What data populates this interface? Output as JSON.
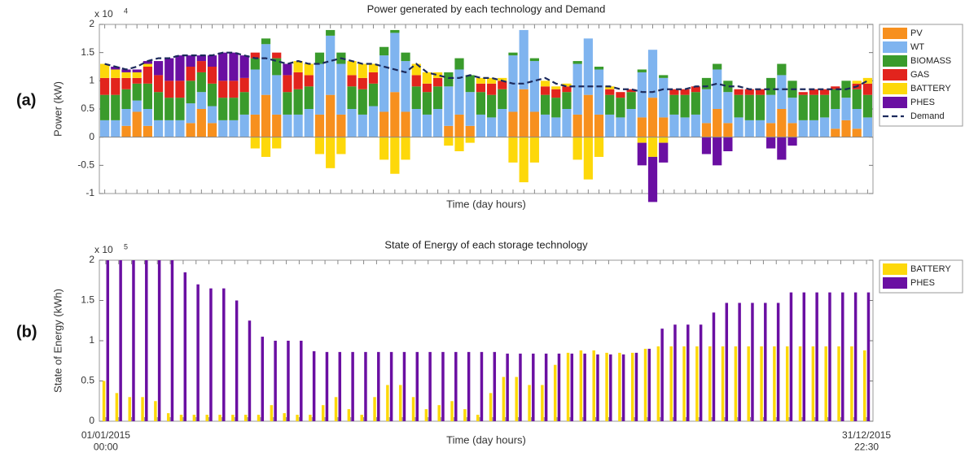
{
  "chart_data": [
    {
      "type": "stacked_bar",
      "panel_label": "(a)",
      "title": "Power generated by each technology and Demand",
      "x_label": "Time (day hours)",
      "y_label": "Power (kW)",
      "y_multiplier": {
        "base": "x 10",
        "exponent": "4"
      },
      "ylim": [
        -1,
        2
      ],
      "yticks": [
        -1,
        -0.5,
        0,
        0.5,
        1,
        1.5,
        2
      ],
      "grid": false,
      "legend": "right",
      "categories": [
        null,
        null,
        null,
        null,
        null,
        null,
        null,
        null,
        null,
        null,
        null,
        null,
        null,
        null,
        null,
        null,
        null,
        null,
        null,
        null,
        null,
        null,
        null,
        null,
        null,
        null,
        null,
        null,
        null,
        null,
        null,
        null,
        null,
        null,
        null,
        null,
        null,
        null,
        null,
        null,
        null,
        null,
        null,
        null,
        null,
        null,
        null,
        null,
        null,
        null,
        null,
        null,
        null,
        null,
        null,
        null,
        null,
        null,
        null,
        null,
        null,
        null,
        null,
        null,
        null,
        null,
        null,
        null,
        null,
        null,
        null,
        null
      ],
      "series": [
        {
          "name": "PV",
          "color": "#f7901e",
          "values": [
            0,
            0,
            0.2,
            0.45,
            0.2,
            0,
            0,
            0,
            0.25,
            0.5,
            0.25,
            0,
            0,
            0,
            0.4,
            0.75,
            0.4,
            0,
            0,
            0,
            0.4,
            0.75,
            0.4,
            0,
            0,
            0,
            0.45,
            0.8,
            0.45,
            0,
            0,
            0,
            0.2,
            0.4,
            0.2,
            0,
            0,
            0,
            0.45,
            0.85,
            0.45,
            0,
            0,
            0,
            0.4,
            0.75,
            0.4,
            0,
            0,
            0,
            0.35,
            0.7,
            0.35,
            0,
            0,
            0,
            0.25,
            0.5,
            0.25,
            0,
            0,
            0,
            0.25,
            0.5,
            0.25,
            0,
            0,
            0,
            0.15,
            0.3,
            0.15,
            0
          ]
        },
        {
          "name": "WT",
          "color": "#7fb4ef",
          "values": [
            0.3,
            0.3,
            0.3,
            0.2,
            0.3,
            0.3,
            0.3,
            0.3,
            0.35,
            0.3,
            0.3,
            0.3,
            0.3,
            0.4,
            0.8,
            0.9,
            0.7,
            0.4,
            0.4,
            0.5,
            0.9,
            1.05,
            0.9,
            0.5,
            0.4,
            0.55,
            1.0,
            1.05,
            0.9,
            0.5,
            0.4,
            0.5,
            0.7,
            0.8,
            0.6,
            0.4,
            0.35,
            0.5,
            1.0,
            1.05,
            0.9,
            0.4,
            0.35,
            0.5,
            0.9,
            1.0,
            0.8,
            0.4,
            0.35,
            0.5,
            0.8,
            0.85,
            0.7,
            0.4,
            0.35,
            0.4,
            0.6,
            0.7,
            0.55,
            0.35,
            0.3,
            0.3,
            0.5,
            0.6,
            0.45,
            0.3,
            0.3,
            0.35,
            0.35,
            0.4,
            0.35,
            0.35
          ]
        },
        {
          "name": "BIOMASS",
          "color": "#3a9b2c",
          "values": [
            0.45,
            0.45,
            0.35,
            0.3,
            0.45,
            0.5,
            0.4,
            0.4,
            0.4,
            0.35,
            0.4,
            0.4,
            0.4,
            0.4,
            0.2,
            0.1,
            0.3,
            0.4,
            0.45,
            0.4,
            0.2,
            0.1,
            0.2,
            0.4,
            0.45,
            0.4,
            0.15,
            0.05,
            0.15,
            0.4,
            0.4,
            0.4,
            0.25,
            0.2,
            0.3,
            0.4,
            0.4,
            0.35,
            0.05,
            0,
            0.05,
            0.35,
            0.35,
            0.3,
            0.05,
            0,
            0.05,
            0.35,
            0.35,
            0.3,
            0.05,
            0,
            0.05,
            0.35,
            0.4,
            0.4,
            0.2,
            0.1,
            0.2,
            0.4,
            0.45,
            0.45,
            0.3,
            0.2,
            0.3,
            0.45,
            0.45,
            0.4,
            0.35,
            0.3,
            0.35,
            0.4
          ]
        },
        {
          "name": "GAS",
          "color": "#e2241d",
          "values": [
            0.3,
            0.3,
            0.2,
            0.1,
            0.3,
            0.3,
            0.3,
            0.3,
            0.25,
            0.2,
            0.3,
            0.3,
            0.3,
            0.25,
            0.1,
            0,
            0.1,
            0.3,
            0.3,
            0.2,
            0,
            0,
            0,
            0.2,
            0.2,
            0.2,
            0,
            0,
            0,
            0.2,
            0.15,
            0.15,
            0,
            0,
            0,
            0.15,
            0.2,
            0.15,
            0,
            0,
            0,
            0.15,
            0.15,
            0.1,
            0,
            0,
            0,
            0.1,
            0.1,
            0.05,
            0,
            0,
            0,
            0.1,
            0.1,
            0.1,
            0,
            0,
            0,
            0.1,
            0.1,
            0.1,
            0,
            0,
            0,
            0.05,
            0.1,
            0.1,
            0.05,
            0,
            0.1,
            0.2
          ]
        },
        {
          "name": "BATTERY",
          "color": "#fdd80a",
          "values": [
            0.25,
            0.15,
            0.1,
            0.1,
            0.05,
            0,
            0,
            0,
            0,
            0,
            0,
            0,
            0,
            0,
            -0.2,
            -0.35,
            -0.2,
            0,
            0.2,
            0.2,
            -0.3,
            -0.55,
            -0.3,
            0.25,
            0.25,
            0.15,
            -0.4,
            -0.65,
            -0.4,
            0.2,
            0.2,
            0.1,
            -0.15,
            -0.25,
            -0.1,
            0.1,
            0.1,
            0.05,
            -0.45,
            -0.8,
            -0.45,
            0.1,
            0.05,
            0.05,
            -0.4,
            -0.75,
            -0.35,
            0.05,
            0,
            0,
            -0.1,
            -0.35,
            -0.1,
            0,
            0,
            0,
            0,
            0,
            0,
            0,
            0,
            0,
            0,
            0,
            0,
            0,
            0,
            0,
            0,
            0,
            0.05,
            0.1
          ]
        },
        {
          "name": "PHES",
          "color": "#6a0fa2",
          "values": [
            0,
            0.05,
            0.05,
            0.05,
            0.05,
            0.25,
            0.4,
            0.45,
            0.2,
            0.1,
            0.2,
            0.5,
            0.5,
            0.4,
            0,
            0,
            0,
            0.2,
            0,
            0,
            0,
            0,
            0,
            0,
            0,
            0,
            0,
            0,
            0,
            0,
            0,
            0,
            0,
            0,
            0,
            0,
            0,
            0,
            0,
            0,
            0,
            0,
            0,
            0,
            0,
            0,
            0,
            0,
            0,
            0,
            -0.4,
            -0.8,
            -0.35,
            0,
            0,
            0,
            -0.3,
            -0.5,
            -0.25,
            0,
            0,
            0,
            -0.2,
            -0.4,
            -0.15,
            0,
            0,
            0,
            0,
            0,
            0,
            0
          ]
        },
        {
          "name": "Demand",
          "color": "#1c2a5c",
          "kind": "line",
          "dashed": true,
          "values": [
            1.3,
            1.25,
            1.2,
            1.25,
            1.35,
            1.4,
            1.4,
            1.45,
            1.45,
            1.45,
            1.45,
            1.5,
            1.5,
            1.45,
            1.4,
            1.4,
            1.35,
            1.3,
            1.35,
            1.3,
            1.3,
            1.35,
            1.4,
            1.35,
            1.3,
            1.3,
            1.25,
            1.2,
            1.15,
            1.3,
            1.15,
            1.1,
            1.05,
            1.05,
            1.1,
            1.05,
            1.05,
            1.0,
            0.95,
            0.95,
            1.0,
            1.05,
            0.95,
            0.9,
            0.9,
            0.9,
            0.9,
            0.9,
            0.85,
            0.85,
            0.8,
            0.8,
            0.85,
            0.85,
            0.85,
            0.9,
            0.9,
            0.95,
            0.9,
            0.9,
            0.85,
            0.85,
            0.85,
            0.85,
            0.85,
            0.85,
            0.85,
            0.85,
            0.85,
            0.85,
            0.9,
            1.0
          ]
        }
      ]
    },
    {
      "type": "paired_bar",
      "panel_label": "(b)",
      "title": "State of Energy of each storage technology",
      "x_label": "Time (day hours)",
      "y_label": "State of Energy (kWh)",
      "y_multiplier": {
        "base": "x 10",
        "exponent": "5"
      },
      "ylim": [
        0,
        2
      ],
      "yticks": [
        0,
        0.5,
        1,
        1.5,
        2
      ],
      "grid": false,
      "legend": "right",
      "categories": [
        "01/01/2015\n00:00",
        null,
        null,
        null,
        null,
        null,
        null,
        null,
        null,
        null,
        null,
        null,
        null,
        null,
        null,
        null,
        null,
        null,
        null,
        null,
        null,
        null,
        null,
        null,
        null,
        null,
        null,
        null,
        null,
        null,
        null,
        null,
        null,
        null,
        null,
        null,
        null,
        null,
        null,
        null,
        null,
        null,
        null,
        null,
        null,
        null,
        null,
        null,
        null,
        null,
        null,
        null,
        null,
        null,
        null,
        null,
        null,
        null,
        null,
        "31/12/2015\n22:30"
      ],
      "series": [
        {
          "name": "BATTERY",
          "color": "#fdd80a",
          "values": [
            0.5,
            0.35,
            0.3,
            0.3,
            0.25,
            0.1,
            0.08,
            0.08,
            0.08,
            0.08,
            0.08,
            0.08,
            0.08,
            0.2,
            0.1,
            0.08,
            0.08,
            0.2,
            0.3,
            0.15,
            0.08,
            0.3,
            0.45,
            0.45,
            0.3,
            0.15,
            0.2,
            0.25,
            0.15,
            0.08,
            0.35,
            0.55,
            0.55,
            0.45,
            0.45,
            0.7,
            0.85,
            0.88,
            0.88,
            0.85,
            0.85,
            0.85,
            0.9,
            0.93,
            0.93,
            0.93,
            0.93,
            0.93,
            0.93,
            0.93,
            0.93,
            0.93,
            0.93,
            0.93,
            0.93,
            0.93,
            0.93,
            0.93,
            0.93,
            0.88
          ]
        },
        {
          "name": "PHES",
          "color": "#6a0fa2",
          "values": [
            2,
            2,
            2,
            2,
            2,
            2,
            1.85,
            1.7,
            1.65,
            1.65,
            1.5,
            1.25,
            1.05,
            1.0,
            1.0,
            1.0,
            0.87,
            0.86,
            0.86,
            0.86,
            0.86,
            0.86,
            0.86,
            0.86,
            0.86,
            0.86,
            0.86,
            0.86,
            0.86,
            0.86,
            0.86,
            0.84,
            0.84,
            0.84,
            0.84,
            0.84,
            0.84,
            0.84,
            0.83,
            0.83,
            0.83,
            0.85,
            0.9,
            1.15,
            1.2,
            1.2,
            1.2,
            1.35,
            1.47,
            1.47,
            1.47,
            1.47,
            1.47,
            1.6,
            1.6,
            1.6,
            1.6,
            1.6,
            1.6,
            1.6
          ]
        }
      ]
    }
  ]
}
